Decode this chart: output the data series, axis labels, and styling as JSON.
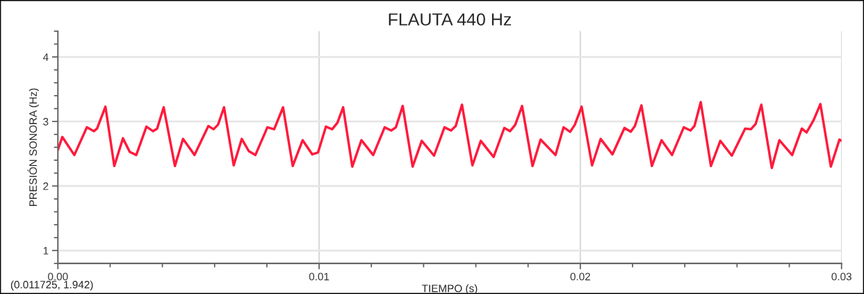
{
  "chart_data": {
    "type": "line",
    "title": "FLAUTA 440 Hz",
    "xlabel": "TIEMPO (s)",
    "ylabel": "PRESIÓN SONORA (Hz)",
    "annotations": [
      "(0.011725, 1.942)"
    ],
    "xlim": [
      0,
      0.03
    ],
    "ylim": [
      0.8,
      4.4
    ],
    "xticks": [
      {
        "value": 0,
        "label": "0.00"
      },
      {
        "value": 0.002,
        "label": null
      },
      {
        "value": 0.004,
        "label": null
      },
      {
        "value": 0.006,
        "label": null
      },
      {
        "value": 0.008,
        "label": null
      },
      0.01,
      {
        "value": 0.012,
        "label": null
      },
      {
        "value": 0.014,
        "label": null
      },
      {
        "value": 0.016,
        "label": null
      },
      {
        "value": 0.018,
        "label": null
      },
      0.02,
      {
        "value": 0.022,
        "label": null
      },
      {
        "value": 0.024,
        "label": null
      },
      {
        "value": 0.026,
        "label": null
      },
      {
        "value": 0.028,
        "label": null
      },
      0.03
    ],
    "yticks": [
      {
        "value": 0.8,
        "label": null
      },
      1,
      {
        "value": 1.2,
        "label": null
      },
      {
        "value": 1.4,
        "label": null
      },
      {
        "value": 1.6,
        "label": null
      },
      {
        "value": 1.8,
        "label": null
      },
      2,
      {
        "value": 2.2,
        "label": null
      },
      {
        "value": 2.4,
        "label": null
      },
      {
        "value": 2.6,
        "label": null
      },
      {
        "value": 2.8,
        "label": null
      },
      3,
      {
        "value": 3.2,
        "label": null
      },
      {
        "value": 3.4,
        "label": null
      },
      {
        "value": 3.6,
        "label": null
      },
      {
        "value": 3.8,
        "label": null
      },
      4,
      {
        "value": 4.2,
        "label": null
      },
      {
        "value": 4.4,
        "label": null
      }
    ],
    "grid": true,
    "marker": "none",
    "line_style": "solid",
    "series": [
      {
        "color": "#ff1a3c",
        "x": [
          0,
          0.00017,
          0.00063,
          0.00111,
          0.00138,
          0.0015,
          0.00182,
          0.00216,
          0.00249,
          0.00275,
          0.003,
          0.00339,
          0.00364,
          0.0038,
          0.00405,
          0.00448,
          0.00479,
          0.00523,
          0.00576,
          0.00596,
          0.00613,
          0.00636,
          0.00673,
          0.00704,
          0.00731,
          0.00756,
          0.00802,
          0.00828,
          0.00862,
          0.00899,
          0.00937,
          0.00974,
          0.00996,
          0.01026,
          0.0105,
          0.0107,
          0.01092,
          0.01127,
          0.01162,
          0.01207,
          0.01251,
          0.01276,
          0.01294,
          0.0132,
          0.01358,
          0.01393,
          0.0144,
          0.0148,
          0.01505,
          0.01523,
          0.01547,
          0.01587,
          0.01619,
          0.01668,
          0.01709,
          0.01731,
          0.01751,
          0.01777,
          0.01817,
          0.01848,
          0.01905,
          0.01936,
          0.01961,
          0.01979,
          0.02005,
          0.02045,
          0.02078,
          0.02123,
          0.02169,
          0.02193,
          0.02209,
          0.02234,
          0.02274,
          0.02311,
          0.02351,
          0.02396,
          0.02422,
          0.02437,
          0.02461,
          0.025,
          0.02536,
          0.0258,
          0.02631,
          0.02653,
          0.02671,
          0.02693,
          0.02733,
          0.02762,
          0.02811,
          0.02848,
          0.02866,
          0.02893,
          0.02919,
          0.02959,
          0.02992,
          0.03
        ],
        "values": [
          2.56,
          2.76,
          2.48,
          2.91,
          2.85,
          2.89,
          3.23,
          2.31,
          2.74,
          2.53,
          2.48,
          2.92,
          2.85,
          2.89,
          3.22,
          2.31,
          2.73,
          2.48,
          2.93,
          2.88,
          2.95,
          3.22,
          2.32,
          2.73,
          2.54,
          2.48,
          2.91,
          2.88,
          3.22,
          2.31,
          2.71,
          2.49,
          2.52,
          2.92,
          2.88,
          2.98,
          3.22,
          2.3,
          2.71,
          2.48,
          2.91,
          2.86,
          2.91,
          3.24,
          2.3,
          2.7,
          2.47,
          2.91,
          2.86,
          2.93,
          3.26,
          2.32,
          2.7,
          2.45,
          2.9,
          2.85,
          2.95,
          3.24,
          2.31,
          2.72,
          2.48,
          2.91,
          2.84,
          2.95,
          3.23,
          2.32,
          2.73,
          2.49,
          2.9,
          2.84,
          2.93,
          3.25,
          2.31,
          2.71,
          2.48,
          2.91,
          2.86,
          2.93,
          3.3,
          2.31,
          2.7,
          2.47,
          2.89,
          2.88,
          2.96,
          3.26,
          2.28,
          2.71,
          2.48,
          2.89,
          2.83,
          3.02,
          3.27,
          2.3,
          2.72,
          2.7
        ]
      }
    ]
  }
}
